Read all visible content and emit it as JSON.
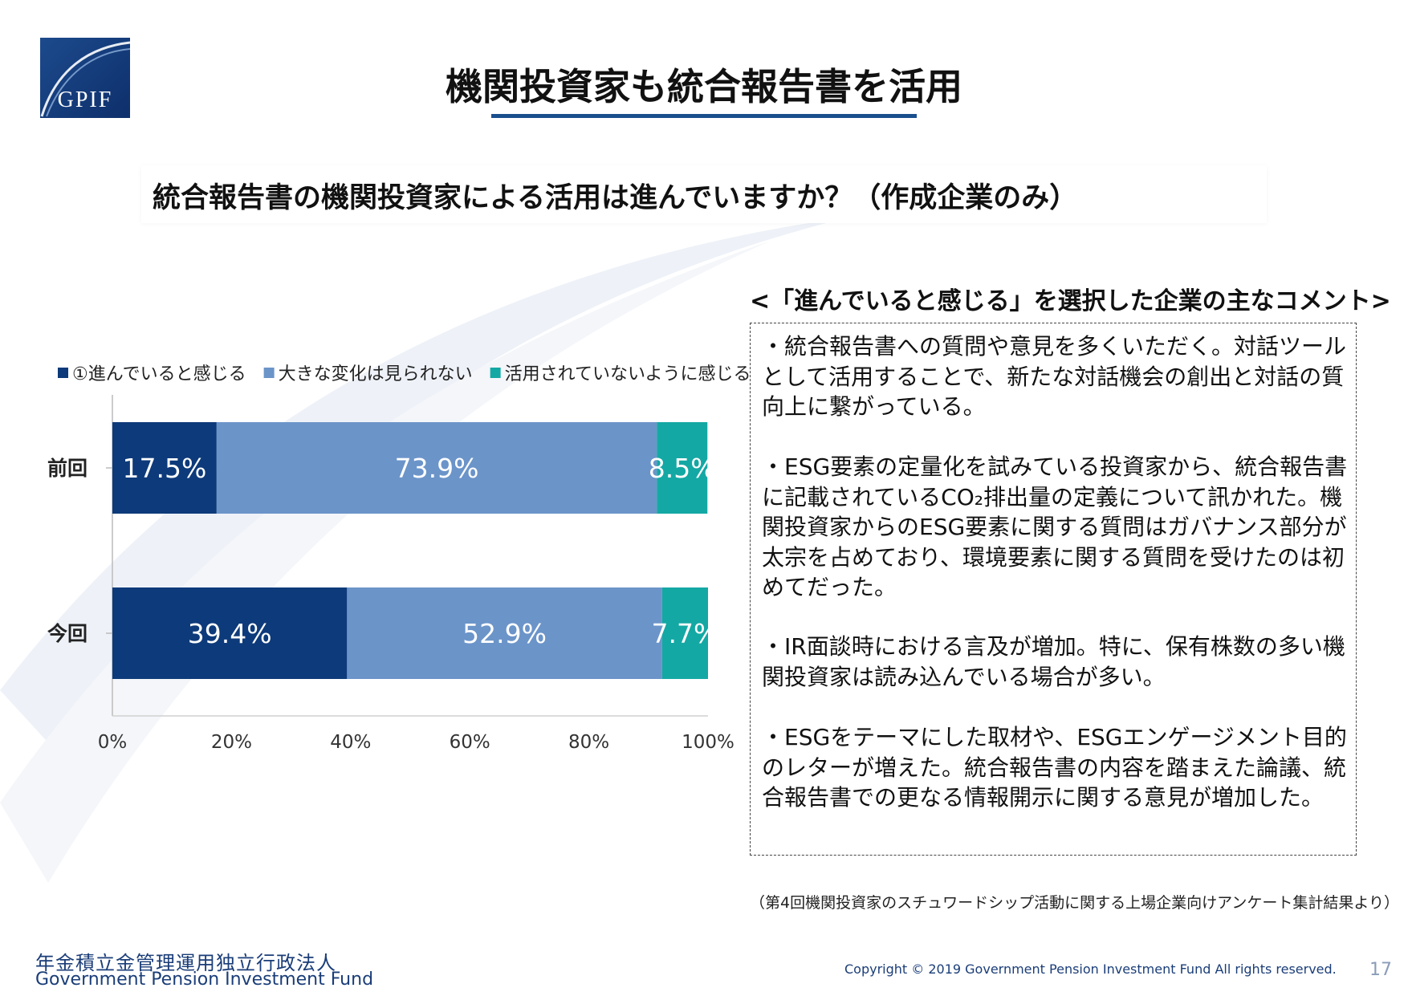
{
  "logo": {
    "text": "GPIF"
  },
  "title": "機関投資家も統合報告書を活用",
  "question": "統合報告書の機関投資家による活用は進んでいますか？（作成企業のみ）",
  "comments": {
    "heading": "<「進んでいると感じる」を選択した企業の主なコメント>",
    "items": [
      "・統合報告書への質問や意見を多くいただく。対話ツールとして活用することで、新たな対話機会の創出と対話の質向上に繋がっている。",
      "・ESG要素の定量化を試みている投資家から、統合報告書に記載されているCO₂排出量の定義について訊かれた。機関投資家からのESG要素に関する質問はガバナンス部分が太宗を占めており、環境要素に関する質問を受けたのは初めてだった。",
      "・IR面談時における言及が増加。特に、保有株数の多い機関投資家は読み込んでいる場合が多い。",
      "・ESGをテーマにした取材や、ESGエンゲージメント目的のレターが増えた。統合報告書の内容を踏まえた論議、統合報告書での更なる情報開示に関する意見が増加した。"
    ]
  },
  "footnote": "（第4回機関投資家のスチュワードシップ活動に関する上場企業向けアンケート集計結果より）",
  "footer": {
    "org_ja": "年金積立金管理運用独立行政法人",
    "org_en": "Government Pension Investment Fund",
    "copyright": "Copyright © 2019 Government Pension Investment Fund All rights reserved.",
    "page": "17"
  },
  "chart_data": {
    "type": "bar",
    "orientation": "horizontal",
    "stacked": true,
    "categories": [
      "前回",
      "今回"
    ],
    "series": [
      {
        "name": "①進んでいると感じる",
        "color": "#0d3a7a",
        "values": [
          17.5,
          39.4
        ],
        "labels": [
          "17.5%",
          "39.4%"
        ]
      },
      {
        "name": "大きな変化は見られない",
        "color": "#6b94c9",
        "values": [
          73.9,
          52.9
        ],
        "labels": [
          "73.9%",
          "52.9%"
        ]
      },
      {
        "name": "活用されていないように感じる",
        "color": "#14a8a4",
        "values": [
          8.5,
          7.7
        ],
        "labels": [
          "8.5%",
          "7.7%"
        ]
      }
    ],
    "xlim": [
      0,
      100
    ],
    "xticks": [
      "0%",
      "20%",
      "40%",
      "60%",
      "80%",
      "100%"
    ],
    "legend": "top",
    "grid": false
  }
}
